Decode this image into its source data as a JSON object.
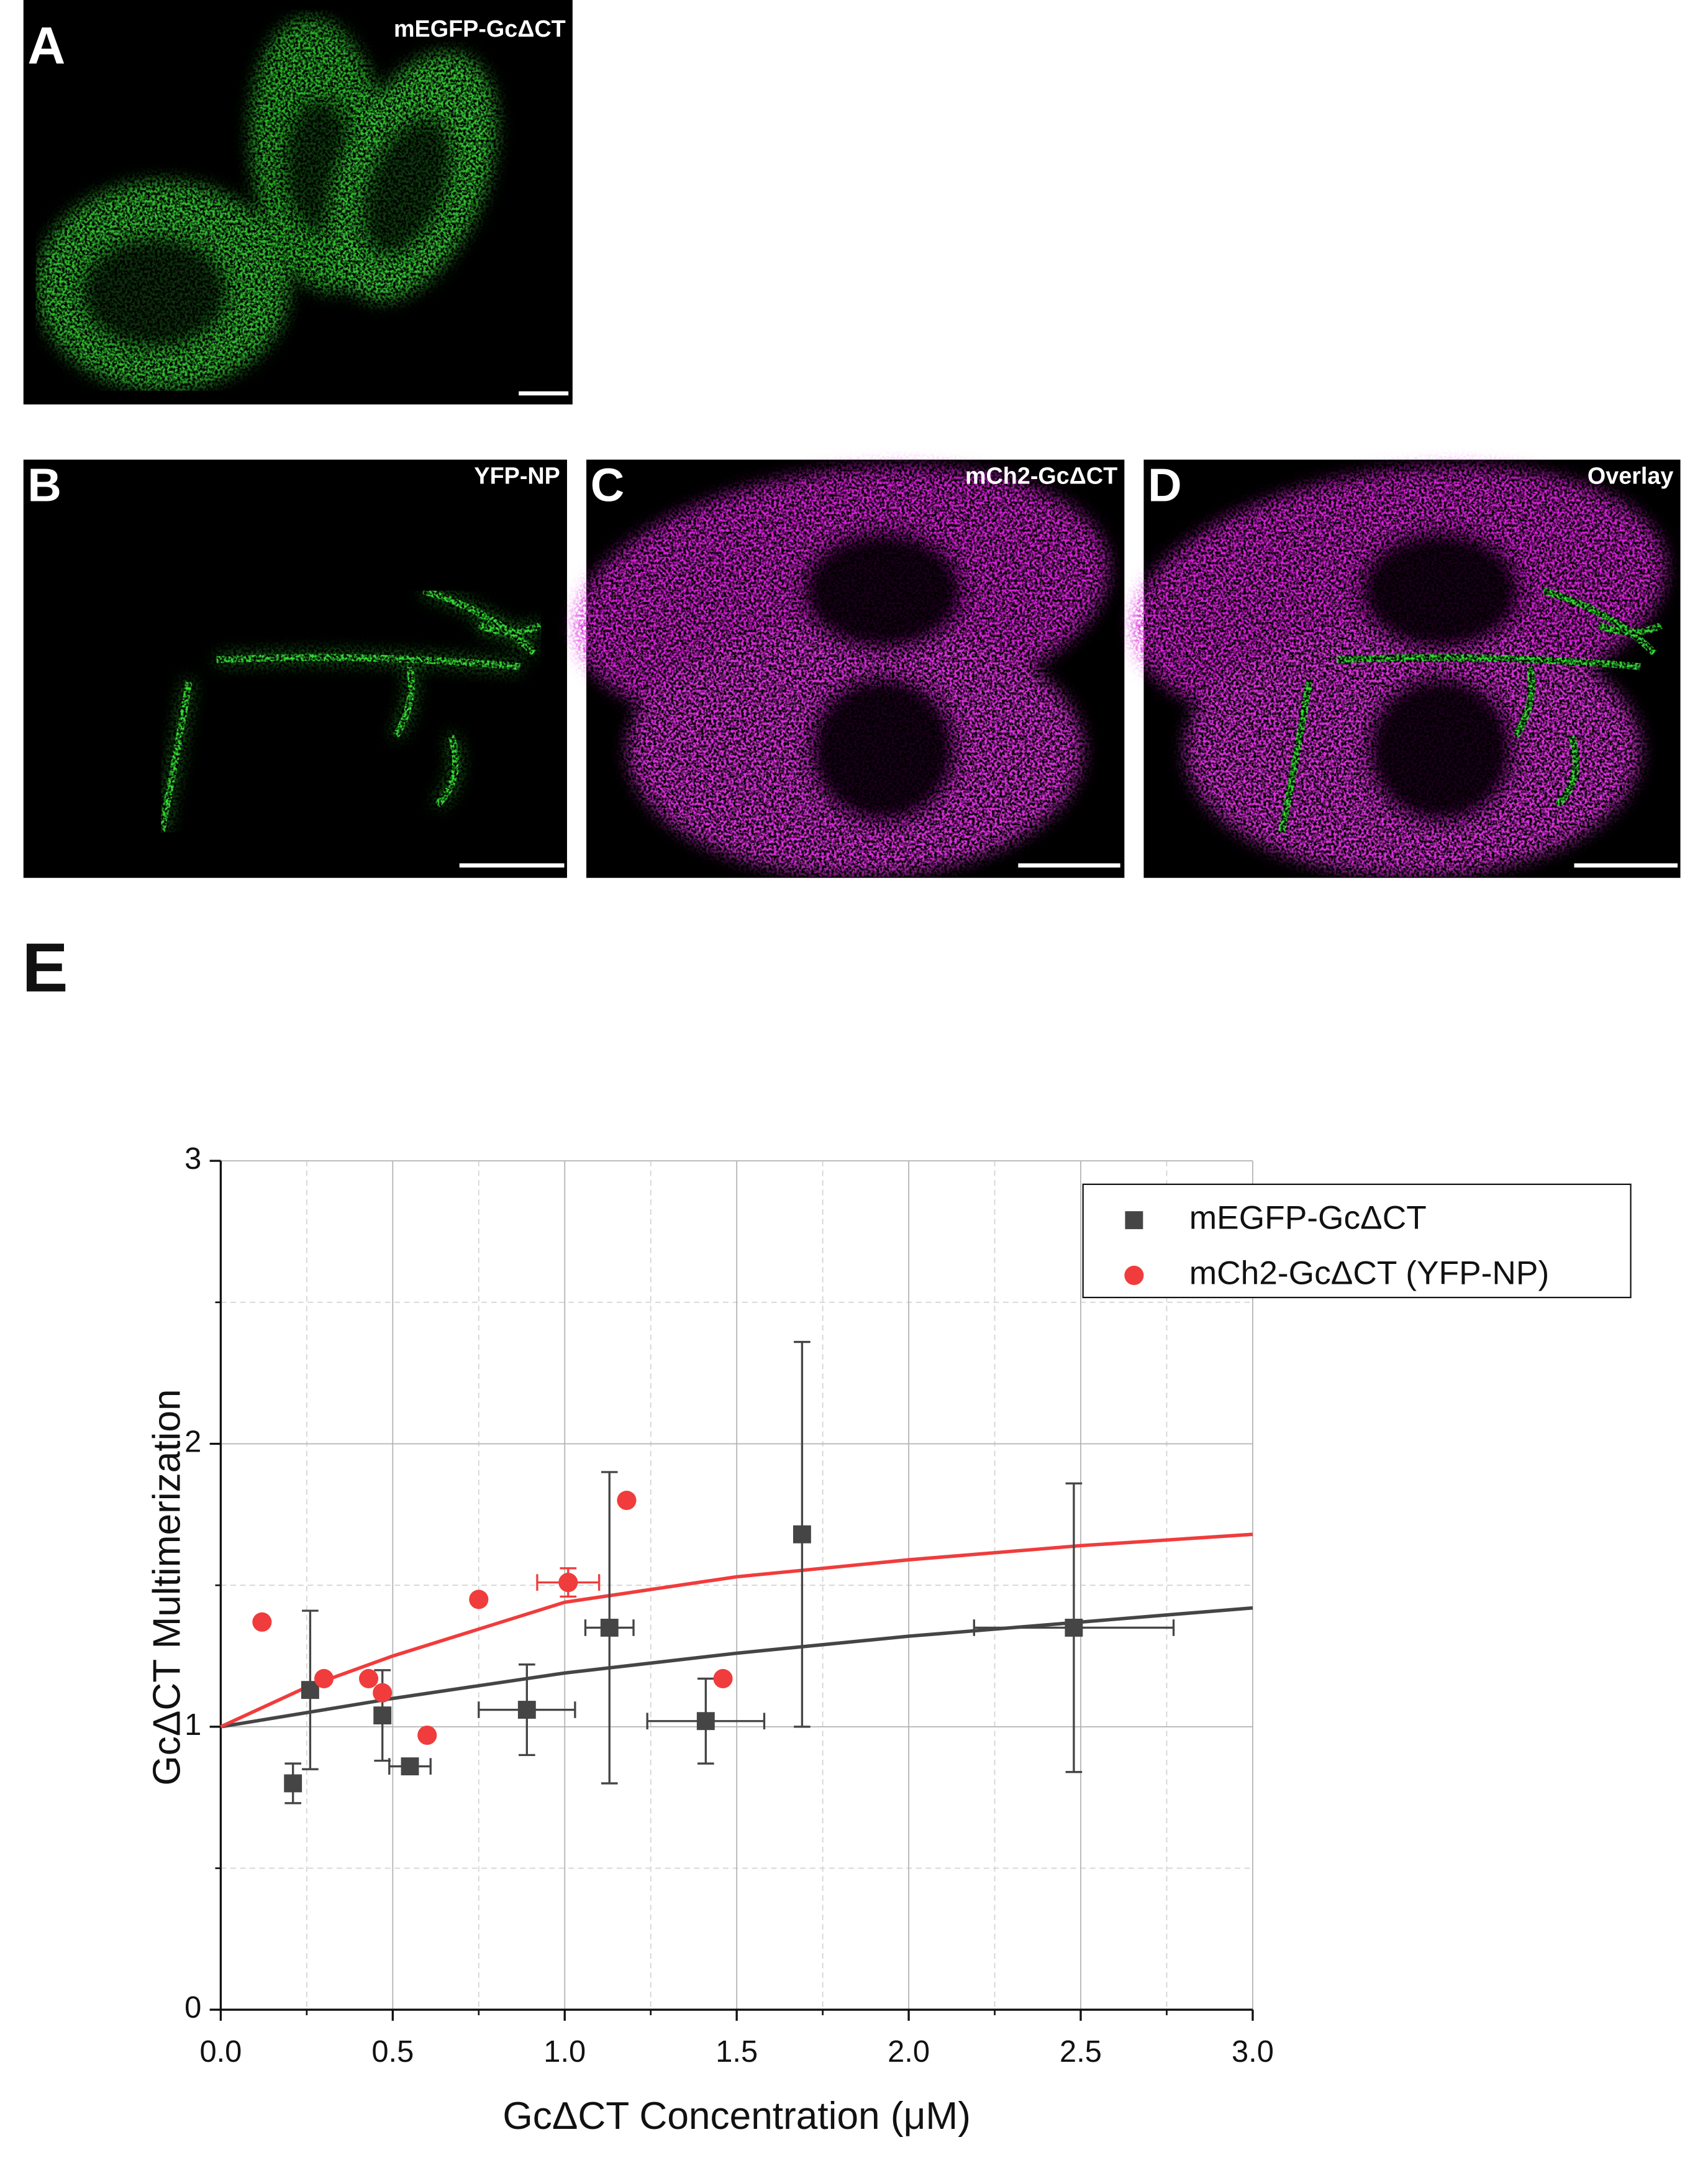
{
  "panels": [
    {
      "letter": "A",
      "label": "mEGFP-GcΔCT"
    },
    {
      "letter": "B",
      "label": "YFP-NP"
    },
    {
      "letter": "C",
      "label": "mCh2-GcΔCT"
    },
    {
      "letter": "D",
      "label": "Overlay"
    },
    {
      "letter": "E"
    }
  ],
  "chart_data": {
    "type": "scatter",
    "x_label": "GcΔCT Concentration (μM)",
    "y_label": "GcΔCT Multimerization",
    "xlim": [
      0,
      3
    ],
    "ylim": [
      0,
      3
    ],
    "xticks": [
      {
        "value": 0,
        "label": "0.0"
      },
      0.5,
      {
        "value": 1,
        "label": "1.0"
      },
      1.5,
      {
        "value": 2,
        "label": "2.0"
      },
      2.5,
      {
        "value": 3,
        "label": "3.0"
      }
    ],
    "yticks": [
      0,
      1,
      2,
      3
    ],
    "xminor": [
      0.25,
      0.75,
      1.25,
      1.75,
      2.25,
      2.75
    ],
    "yminor": [
      0.5,
      1.5,
      2.5
    ],
    "grid": true,
    "legend": "upper right",
    "series": [
      {
        "name": "mEGFP-GcΔCT",
        "color": "#454545",
        "marker": "square",
        "x": [
          0.21,
          0.26,
          0.47,
          0.55,
          0.89,
          1.13,
          1.41,
          1.69,
          2.48
        ],
        "values": [
          0.8,
          1.13,
          1.04,
          0.86,
          1.06,
          1.35,
          1.02,
          1.68,
          1.35
        ],
        "xerr": [
          null,
          null,
          null,
          0.06,
          0.14,
          0.07,
          0.17,
          null,
          0.29
        ],
        "yerr": [
          0.07,
          0.28,
          0.16,
          null,
          0.16,
          0.55,
          0.15,
          0.68,
          0.51
        ]
      },
      {
        "name": "mCh2-GcΔCT (YFP-NP)",
        "color": "#f03c3c",
        "marker": "circle",
        "x": [
          0.12,
          0.3,
          0.43,
          0.47,
          0.6,
          0.75,
          1.01,
          1.18,
          1.46
        ],
        "values": [
          1.37,
          1.17,
          1.17,
          1.12,
          0.97,
          1.45,
          1.51,
          1.8,
          1.17
        ],
        "xerr": [
          null,
          null,
          null,
          null,
          null,
          null,
          0.09,
          null,
          null
        ],
        "yerr": [
          null,
          null,
          null,
          null,
          null,
          null,
          0.05,
          null,
          null
        ]
      }
    ],
    "fits": [
      {
        "color": "#454545",
        "x": [
          0,
          0.25,
          0.5,
          1,
          1.5,
          2,
          2.5,
          3
        ],
        "values": [
          1,
          1.05,
          1.1,
          1.19,
          1.26,
          1.32,
          1.37,
          1.42
        ]
      },
      {
        "color": "#f03c3c",
        "x": [
          0,
          0.25,
          0.5,
          1,
          1.5,
          2,
          2.5,
          3
        ],
        "values": [
          1,
          1.14,
          1.25,
          1.44,
          1.53,
          1.59,
          1.64,
          1.68
        ]
      }
    ]
  }
}
